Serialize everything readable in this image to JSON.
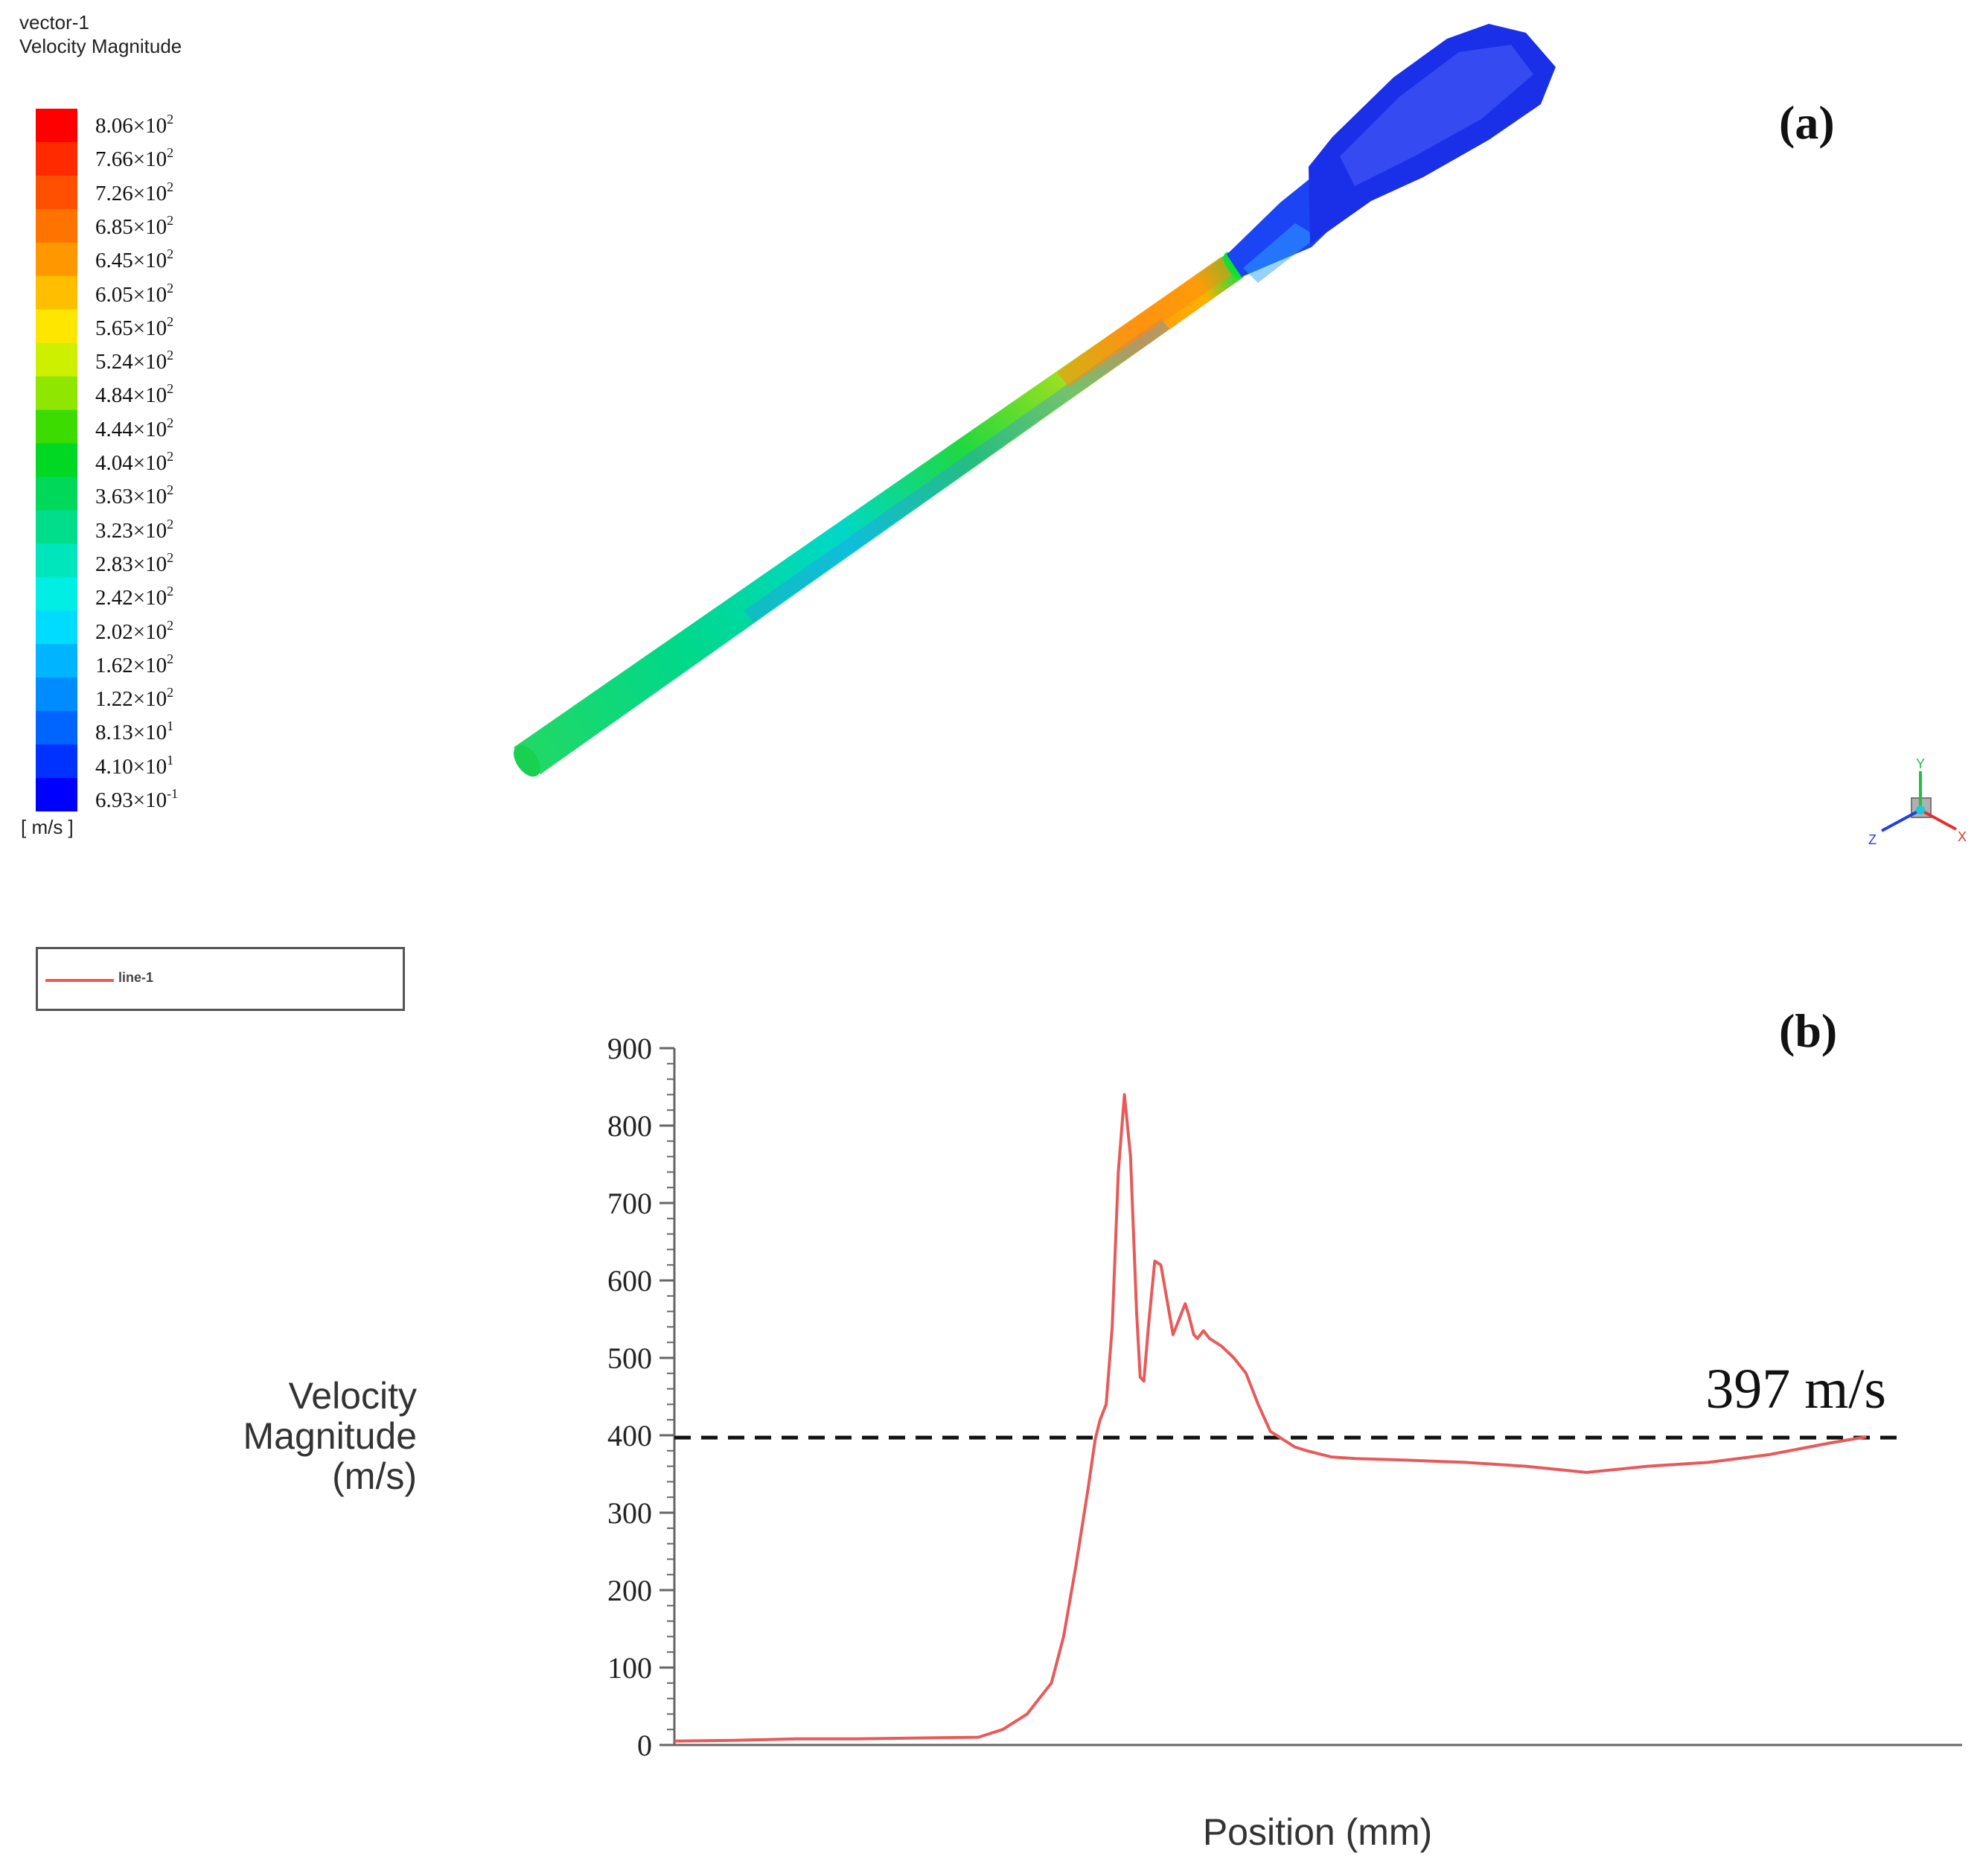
{
  "panel_a": {
    "label": "(a)",
    "legend_title_line1": "vector-1",
    "legend_title_line2": "Velocity Magnitude",
    "unit": "[ m/s ]",
    "colorbar": [
      {
        "mantissa": "8.06",
        "exp": "2",
        "color": "#ff0000"
      },
      {
        "mantissa": "7.66",
        "exp": "2",
        "color": "#ff2a00"
      },
      {
        "mantissa": "7.26",
        "exp": "2",
        "color": "#ff4f00"
      },
      {
        "mantissa": "6.85",
        "exp": "2",
        "color": "#ff7400"
      },
      {
        "mantissa": "6.45",
        "exp": "2",
        "color": "#ff9800"
      },
      {
        "mantissa": "6.05",
        "exp": "2",
        "color": "#ffbe00"
      },
      {
        "mantissa": "5.65",
        "exp": "2",
        "color": "#ffe600"
      },
      {
        "mantissa": "5.24",
        "exp": "2",
        "color": "#ccf000"
      },
      {
        "mantissa": "4.84",
        "exp": "2",
        "color": "#8fe600"
      },
      {
        "mantissa": "4.44",
        "exp": "2",
        "color": "#3ddc00"
      },
      {
        "mantissa": "4.04",
        "exp": "2",
        "color": "#00d824"
      },
      {
        "mantissa": "3.63",
        "exp": "2",
        "color": "#00d85a"
      },
      {
        "mantissa": "3.23",
        "exp": "2",
        "color": "#00de8c"
      },
      {
        "mantissa": "2.83",
        "exp": "2",
        "color": "#00e6bc"
      },
      {
        "mantissa": "2.42",
        "exp": "2",
        "color": "#00eee4"
      },
      {
        "mantissa": "2.02",
        "exp": "2",
        "color": "#00dcff"
      },
      {
        "mantissa": "1.62",
        "exp": "2",
        "color": "#00b4ff"
      },
      {
        "mantissa": "1.22",
        "exp": "2",
        "color": "#008cff"
      },
      {
        "mantissa": "8.13",
        "exp": "1",
        "color": "#0064ff"
      },
      {
        "mantissa": "4.10",
        "exp": "1",
        "color": "#0032ff"
      },
      {
        "mantissa": "6.93",
        "exp": "-1",
        "color": "#0000ff"
      }
    ],
    "axes_triad": {
      "x": "X",
      "y": "Y",
      "z": "Z"
    }
  },
  "panel_b": {
    "label": "(b)",
    "legend_entry": "line-1",
    "series_color": "#e85a5a"
  },
  "chart_data": {
    "type": "line",
    "title": "",
    "xlabel": "Position (mm)",
    "ylabel_lines": [
      "Velocity",
      "Magnitude",
      "(m/s)"
    ],
    "ylim": [
      0,
      900
    ],
    "yticks": [
      "0",
      "100",
      "200",
      "300",
      "400",
      "500",
      "600",
      "700",
      "800",
      "900"
    ],
    "xlim": [
      0,
      100
    ],
    "reference_line": {
      "value": 397,
      "label": "397 m/s",
      "style": "dashed"
    },
    "series": [
      {
        "name": "line-1",
        "x": [
          0,
          5,
          10,
          15,
          20,
          25,
          27,
          29,
          31,
          32,
          33,
          34,
          34.6,
          35,
          35.5,
          36,
          36.5,
          37,
          37.5,
          38,
          38.3,
          38.6,
          39,
          39.5,
          40,
          40.5,
          41,
          41.5,
          42,
          42.3,
          42.7,
          43,
          43.5,
          44,
          45,
          46,
          47,
          48,
          49,
          50,
          51,
          52,
          54,
          56,
          60,
          65,
          70,
          75,
          80,
          85,
          90,
          95,
          98
        ],
        "values": [
          5,
          6,
          8,
          8,
          9,
          10,
          20,
          40,
          80,
          140,
          230,
          330,
          395,
          420,
          440,
          540,
          740,
          840,
          760,
          560,
          475,
          470,
          545,
          625,
          620,
          575,
          530,
          550,
          570,
          555,
          530,
          525,
          535,
          525,
          515,
          500,
          480,
          440,
          405,
          395,
          385,
          380,
          372,
          370,
          368,
          365,
          360,
          352,
          360,
          365,
          375,
          390,
          398
        ]
      }
    ]
  }
}
